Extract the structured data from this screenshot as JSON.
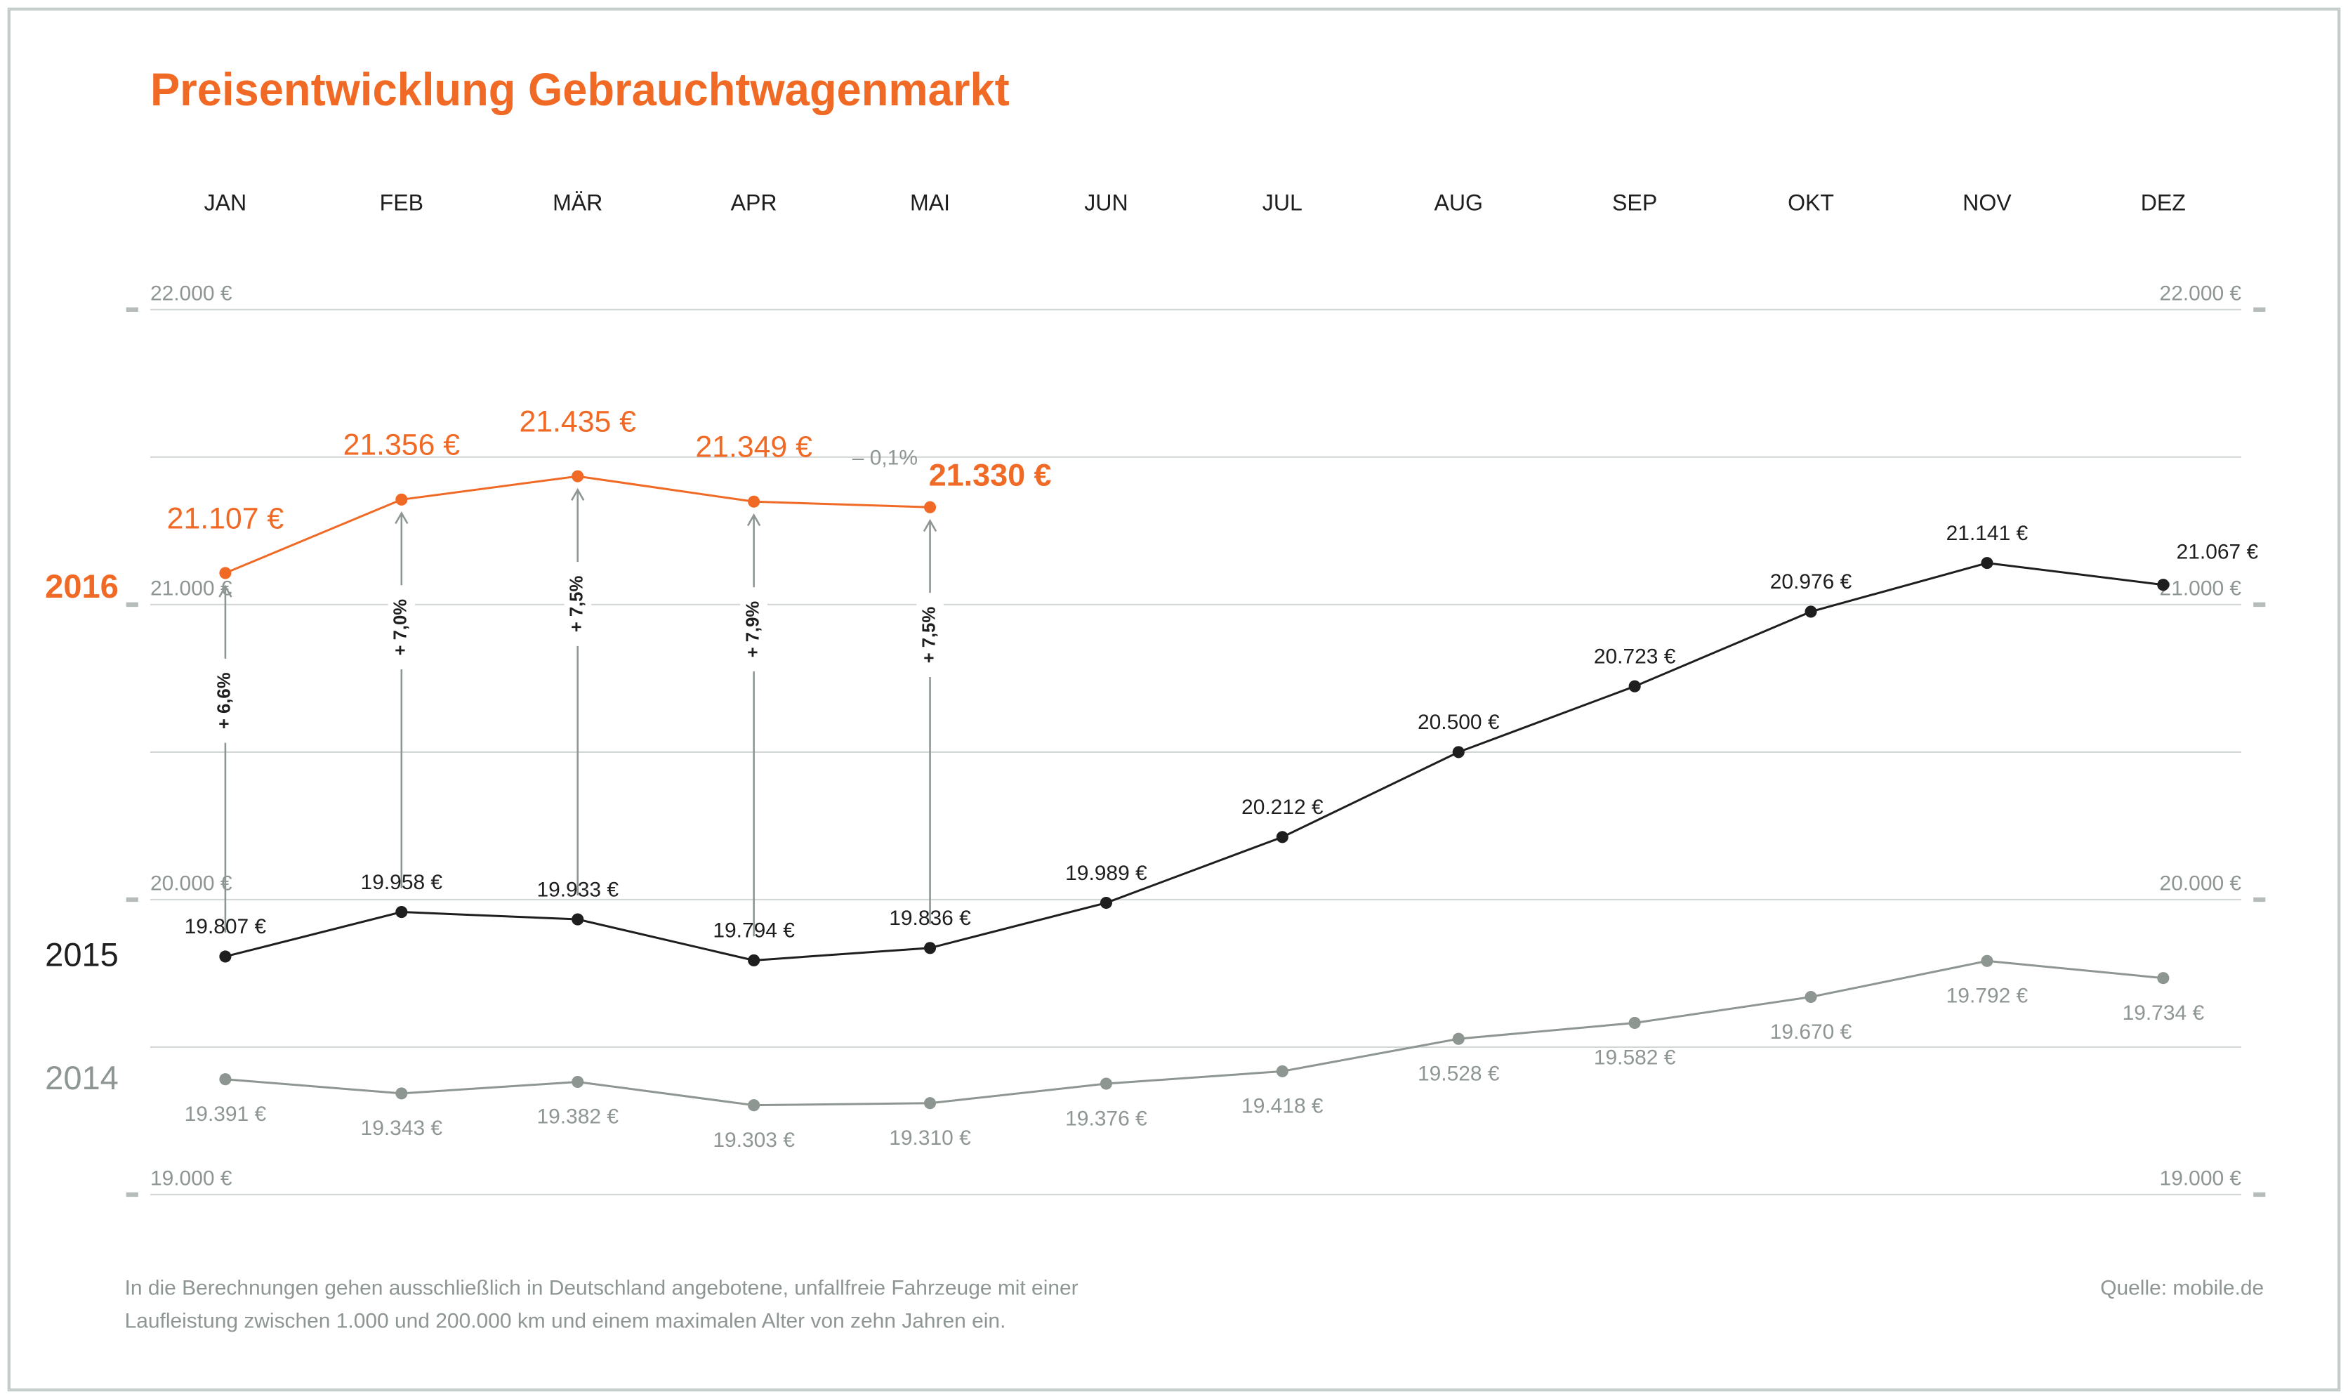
{
  "chart_data": {
    "type": "line",
    "title": "Preisentwicklung Gebrauchtwagenmarkt",
    "categories": [
      "JAN",
      "FEB",
      "MÄR",
      "APR",
      "MAI",
      "JUN",
      "JUL",
      "AUG",
      "SEP",
      "OKT",
      "NOV",
      "DEZ"
    ],
    "series": [
      {
        "name": "2016",
        "color": "#f06a26",
        "values": [
          21107,
          21356,
          21435,
          21349,
          21330,
          null,
          null,
          null,
          null,
          null,
          null,
          null
        ],
        "value_labels": [
          "21.107 €",
          "21.356 €",
          "21.435 €",
          "21.349 €",
          "21.330 €",
          null,
          null,
          null,
          null,
          null,
          null,
          null
        ]
      },
      {
        "name": "2015",
        "color": "#1e1e1e",
        "values": [
          19807,
          19958,
          19933,
          19794,
          19836,
          19989,
          20212,
          20500,
          20723,
          20976,
          21141,
          21067
        ],
        "value_labels": [
          "19.807 €",
          "19.958 €",
          "19.933 €",
          "19.794 €",
          "19.836 €",
          "19.989 €",
          "20.212 €",
          "20.500 €",
          "20.723 €",
          "20.976 €",
          "21.141 €",
          "21.067 €"
        ]
      },
      {
        "name": "2014",
        "color": "#8e9692",
        "values": [
          19391,
          19343,
          19382,
          19303,
          19310,
          19376,
          19418,
          19528,
          19582,
          19670,
          19792,
          19734
        ],
        "value_labels": [
          "19.391 €",
          "19.343 €",
          "19.382 €",
          "19.303 €",
          "19.310 €",
          "19.376 €",
          "19.418 €",
          "19.528 €",
          "19.582 €",
          "19.670 €",
          "19.792 €",
          "19.734 €"
        ]
      }
    ],
    "yoy_changes": [
      "+ 6,6%",
      "+ 7,0%",
      "+ 7,5%",
      "+ 7,9%",
      "+ 7,5%"
    ],
    "mom_change": "– 0,1%",
    "ylim": [
      19000,
      22000
    ],
    "yticks": [
      {
        "value": 19000,
        "label": "19.000 €"
      },
      {
        "value": 20000,
        "label": "20.000 €"
      },
      {
        "value": 21000,
        "label": "21.000 €"
      },
      {
        "value": 22000,
        "label": "22.000 €"
      }
    ],
    "minor_yticks": [
      19500,
      20500,
      21500
    ],
    "grid": true,
    "footnote": [
      "In die Berechnungen gehen ausschließlich in Deutschland angebotene, unfallfreie Fahrzeuge mit einer",
      "Laufleistung zwischen 1.000 und 200.000 km und einem maximalen Alter von zehn Jahren ein."
    ],
    "source": "Quelle: mobile.de"
  }
}
